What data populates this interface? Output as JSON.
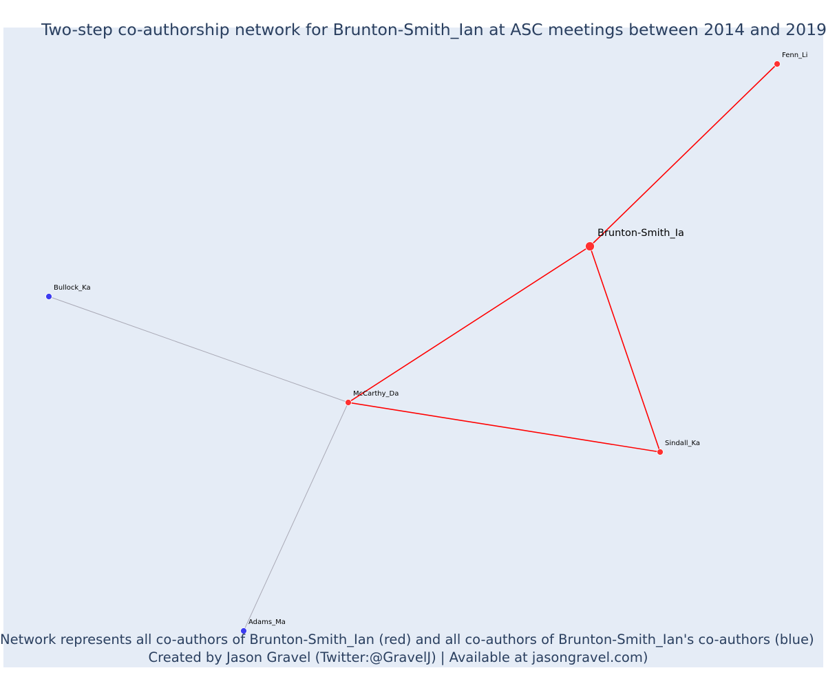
{
  "title": "Two-step co-authorship network for Brunton-Smith_Ian at ASC meetings between 2014 and 2019",
  "caption": {
    "line1": "Network represents all co-authors of Brunton-Smith_Ian (red) and all co-authors of Brunton-Smith_Ian's co-authors (blue)",
    "line2": "Created by Jason Gravel (Twitter:@GravelJ) | Available at jasongravel.com)"
  },
  "colors": {
    "plot_background": "#e5ecf6",
    "direct_coauthor": "#ff3030",
    "second_step_coauthor": "#3c3cf0",
    "direct_edge": "#ff0000",
    "second_step_edge": "#a9a9b5",
    "text": "#2a3f5f"
  },
  "network": {
    "center": "Brunton-Smith_Ia",
    "nodes": [
      {
        "id": "Brunton-Smith_Ia",
        "label": "Brunton-Smith_Ia",
        "group": "direct",
        "focus": true
      },
      {
        "id": "Fenn_Li",
        "label": "Fenn_Li",
        "group": "direct",
        "focus": false
      },
      {
        "id": "McCarthy_Da",
        "label": "McCarthy_Da",
        "group": "direct",
        "focus": false
      },
      {
        "id": "Sindall_Ka",
        "label": "Sindall_Ka",
        "group": "direct",
        "focus": false
      },
      {
        "id": "Bullock_Ka",
        "label": "Bullock_Ka",
        "group": "second_step",
        "focus": false
      },
      {
        "id": "Adams_Ma",
        "label": "Adams_Ma",
        "group": "second_step",
        "focus": false
      }
    ],
    "edges": [
      {
        "source": "Brunton-Smith_Ia",
        "target": "Fenn_Li",
        "group": "direct"
      },
      {
        "source": "Brunton-Smith_Ia",
        "target": "McCarthy_Da",
        "group": "direct"
      },
      {
        "source": "Brunton-Smith_Ia",
        "target": "Sindall_Ka",
        "group": "direct"
      },
      {
        "source": "McCarthy_Da",
        "target": "Sindall_Ka",
        "group": "direct"
      },
      {
        "source": "McCarthy_Da",
        "target": "Bullock_Ka",
        "group": "second_step"
      },
      {
        "source": "McCarthy_Da",
        "target": "Adams_Ma",
        "group": "second_step"
      }
    ]
  }
}
